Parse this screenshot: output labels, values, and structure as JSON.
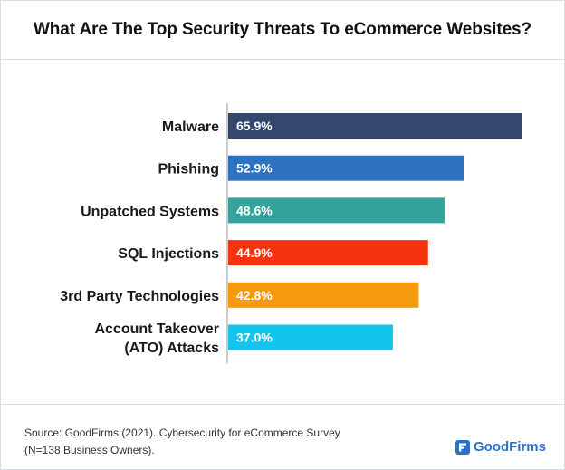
{
  "header": {
    "title": "What Are The Top Security Threats To eCommerce Websites?"
  },
  "chart_data": {
    "type": "bar",
    "orientation": "horizontal",
    "title": "What Are The Top Security Threats To eCommerce Websites?",
    "categories": [
      [
        "Malware"
      ],
      [
        "Phishing"
      ],
      [
        "Unpatched Systems"
      ],
      [
        "SQL Injections"
      ],
      [
        "3rd Party Technologies"
      ],
      [
        "Account Takeover",
        "(ATO) Attacks"
      ]
    ],
    "values": [
      65.9,
      52.9,
      48.6,
      44.9,
      42.8,
      37.0
    ],
    "data_labels": [
      "65.9%",
      "52.9%",
      "48.6%",
      "44.9%",
      "42.8%",
      "37.0%"
    ],
    "colors": [
      "#34486e",
      "#2f72c2",
      "#35a39b",
      "#f4330f",
      "#f59a0e",
      "#12c5ef"
    ],
    "xlim": [
      0,
      65.9
    ],
    "xlabel": "",
    "ylabel": "",
    "grid": false
  },
  "footer": {
    "source_line1": "Source: GoodFirms (2021). Cybersecurity for eCommerce Survey",
    "source_line2": "(N=138 Business Owners).",
    "brand": "GoodFirms",
    "brand_icon": "goodfirms-logo-icon",
    "brand_color": "#2b72c6"
  }
}
